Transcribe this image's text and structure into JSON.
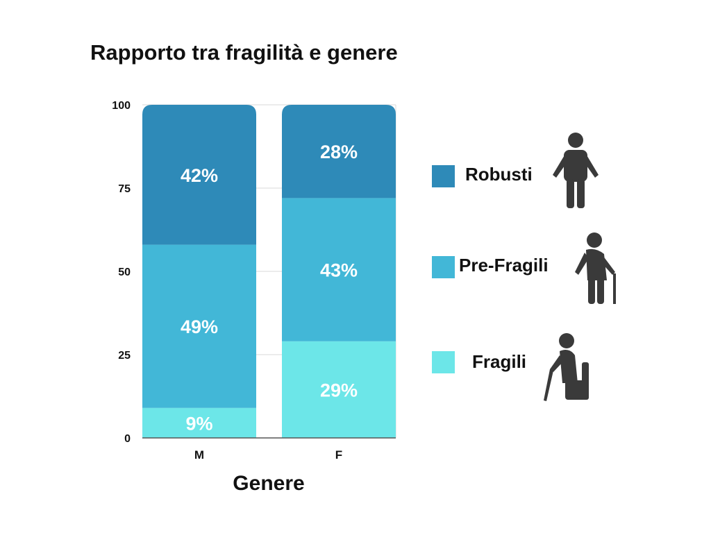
{
  "chart_data": {
    "type": "bar",
    "stacked": true,
    "title": "Rapporto tra fragilità e genere",
    "xlabel": "Genere",
    "ylabel": "",
    "categories": [
      "M",
      "F"
    ],
    "ylim": [
      0,
      100
    ],
    "yticks": [
      0,
      25,
      50,
      75,
      100
    ],
    "grid": true,
    "legend_position": "right",
    "series": [
      {
        "name": "Fragili",
        "values": [
          9,
          29
        ],
        "labels": [
          "9%",
          "29%"
        ],
        "color": "#6ce6e8"
      },
      {
        "name": "Pre-Fragili",
        "values": [
          49,
          43
        ],
        "labels": [
          "49%",
          "43%"
        ],
        "color": "#42b7d7"
      },
      {
        "name": "Robusti",
        "values": [
          42,
          28
        ],
        "labels": [
          "42%",
          "28%"
        ],
        "color": "#2e8ab8"
      }
    ]
  },
  "legend": {
    "order": [
      "Robusti",
      "Pre-Fragili",
      "Fragili"
    ],
    "icons": [
      "standing-elderly-person-icon",
      "elderly-person-with-cane-icon",
      "seated-elderly-person-with-cane-icon"
    ]
  }
}
